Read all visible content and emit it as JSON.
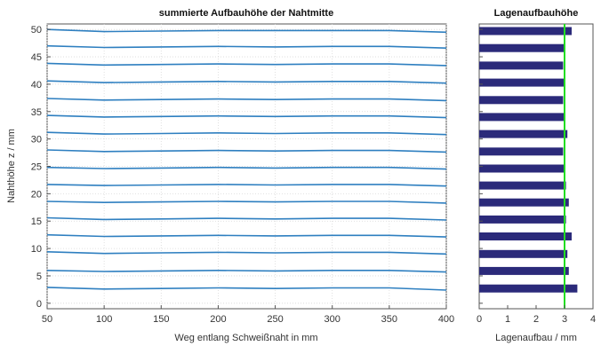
{
  "chart_data": [
    {
      "type": "line",
      "title": "summierte Aufbauhöhe der Nahtmitte",
      "xlabel": "Weg entlang Schweißnaht in mm",
      "ylabel": "Nahthöhe z / mm",
      "xlim": [
        50,
        400
      ],
      "ylim": [
        -1,
        51
      ],
      "xticks": [
        "50",
        "100",
        "150",
        "200",
        "250",
        "300",
        "350",
        "400"
      ],
      "yticks": [
        "0",
        "5",
        "10",
        "15",
        "20",
        "25",
        "30",
        "35",
        "40",
        "45",
        "50"
      ],
      "grid": true,
      "line_color": "#2e7fc0",
      "x": [
        50,
        100,
        150,
        200,
        250,
        300,
        350,
        400
      ],
      "series": [
        {
          "values": [
            2.9,
            2.6,
            2.7,
            2.8,
            2.7,
            2.8,
            2.8,
            2.4
          ]
        },
        {
          "values": [
            6.0,
            5.8,
            5.9,
            6.0,
            5.9,
            6.0,
            6.0,
            5.7
          ]
        },
        {
          "values": [
            9.4,
            9.1,
            9.2,
            9.3,
            9.2,
            9.3,
            9.3,
            9.0
          ]
        },
        {
          "values": [
            12.5,
            12.2,
            12.3,
            12.4,
            12.3,
            12.4,
            12.4,
            12.1
          ]
        },
        {
          "values": [
            15.6,
            15.3,
            15.4,
            15.5,
            15.4,
            15.5,
            15.5,
            15.2
          ]
        },
        {
          "values": [
            18.6,
            18.4,
            18.5,
            18.6,
            18.5,
            18.6,
            18.6,
            18.3
          ]
        },
        {
          "values": [
            21.7,
            21.5,
            21.6,
            21.7,
            21.6,
            21.7,
            21.7,
            21.4
          ]
        },
        {
          "values": [
            24.8,
            24.6,
            24.7,
            24.8,
            24.7,
            24.8,
            24.8,
            24.5
          ]
        },
        {
          "values": [
            28.0,
            27.7,
            27.8,
            27.9,
            27.8,
            27.9,
            27.9,
            27.6
          ]
        },
        {
          "values": [
            31.2,
            30.9,
            31.0,
            31.1,
            31.0,
            31.1,
            31.1,
            30.8
          ]
        },
        {
          "values": [
            34.3,
            34.0,
            34.1,
            34.2,
            34.1,
            34.2,
            34.2,
            33.9
          ]
        },
        {
          "values": [
            37.4,
            37.1,
            37.2,
            37.3,
            37.2,
            37.3,
            37.3,
            37.0
          ]
        },
        {
          "values": [
            40.6,
            40.3,
            40.4,
            40.5,
            40.4,
            40.5,
            40.5,
            40.2
          ]
        },
        {
          "values": [
            43.8,
            43.5,
            43.6,
            43.7,
            43.6,
            43.7,
            43.7,
            43.4
          ]
        },
        {
          "values": [
            47.0,
            46.7,
            46.8,
            46.9,
            46.8,
            46.9,
            46.9,
            46.6
          ]
        },
        {
          "values": [
            50.0,
            49.6,
            49.7,
            49.8,
            49.8,
            49.8,
            49.8,
            49.5
          ]
        }
      ]
    },
    {
      "type": "bar",
      "orientation": "horizontal",
      "title": "Lagenaufbauhöhe",
      "xlabel": "Lagenaufbau / mm",
      "ylabel": "",
      "xlim": [
        0,
        4
      ],
      "ylim": [
        -1,
        51
      ],
      "xticks": [
        "0",
        "1",
        "2",
        "3",
        "4"
      ],
      "grid": false,
      "bar_color": "#2b2a7a",
      "reference_line": {
        "value": 3.0,
        "color": "#22dd22"
      },
      "positions": [
        2.7,
        5.9,
        9.0,
        12.2,
        15.3,
        18.4,
        21.5,
        24.6,
        27.7,
        30.9,
        34.0,
        37.1,
        40.3,
        43.4,
        46.6,
        49.7
      ],
      "values": [
        3.45,
        3.15,
        3.1,
        3.25,
        3.05,
        3.15,
        3.05,
        3.0,
        2.95,
        3.1,
        3.0,
        2.95,
        3.0,
        2.95,
        3.0,
        3.25
      ]
    }
  ]
}
